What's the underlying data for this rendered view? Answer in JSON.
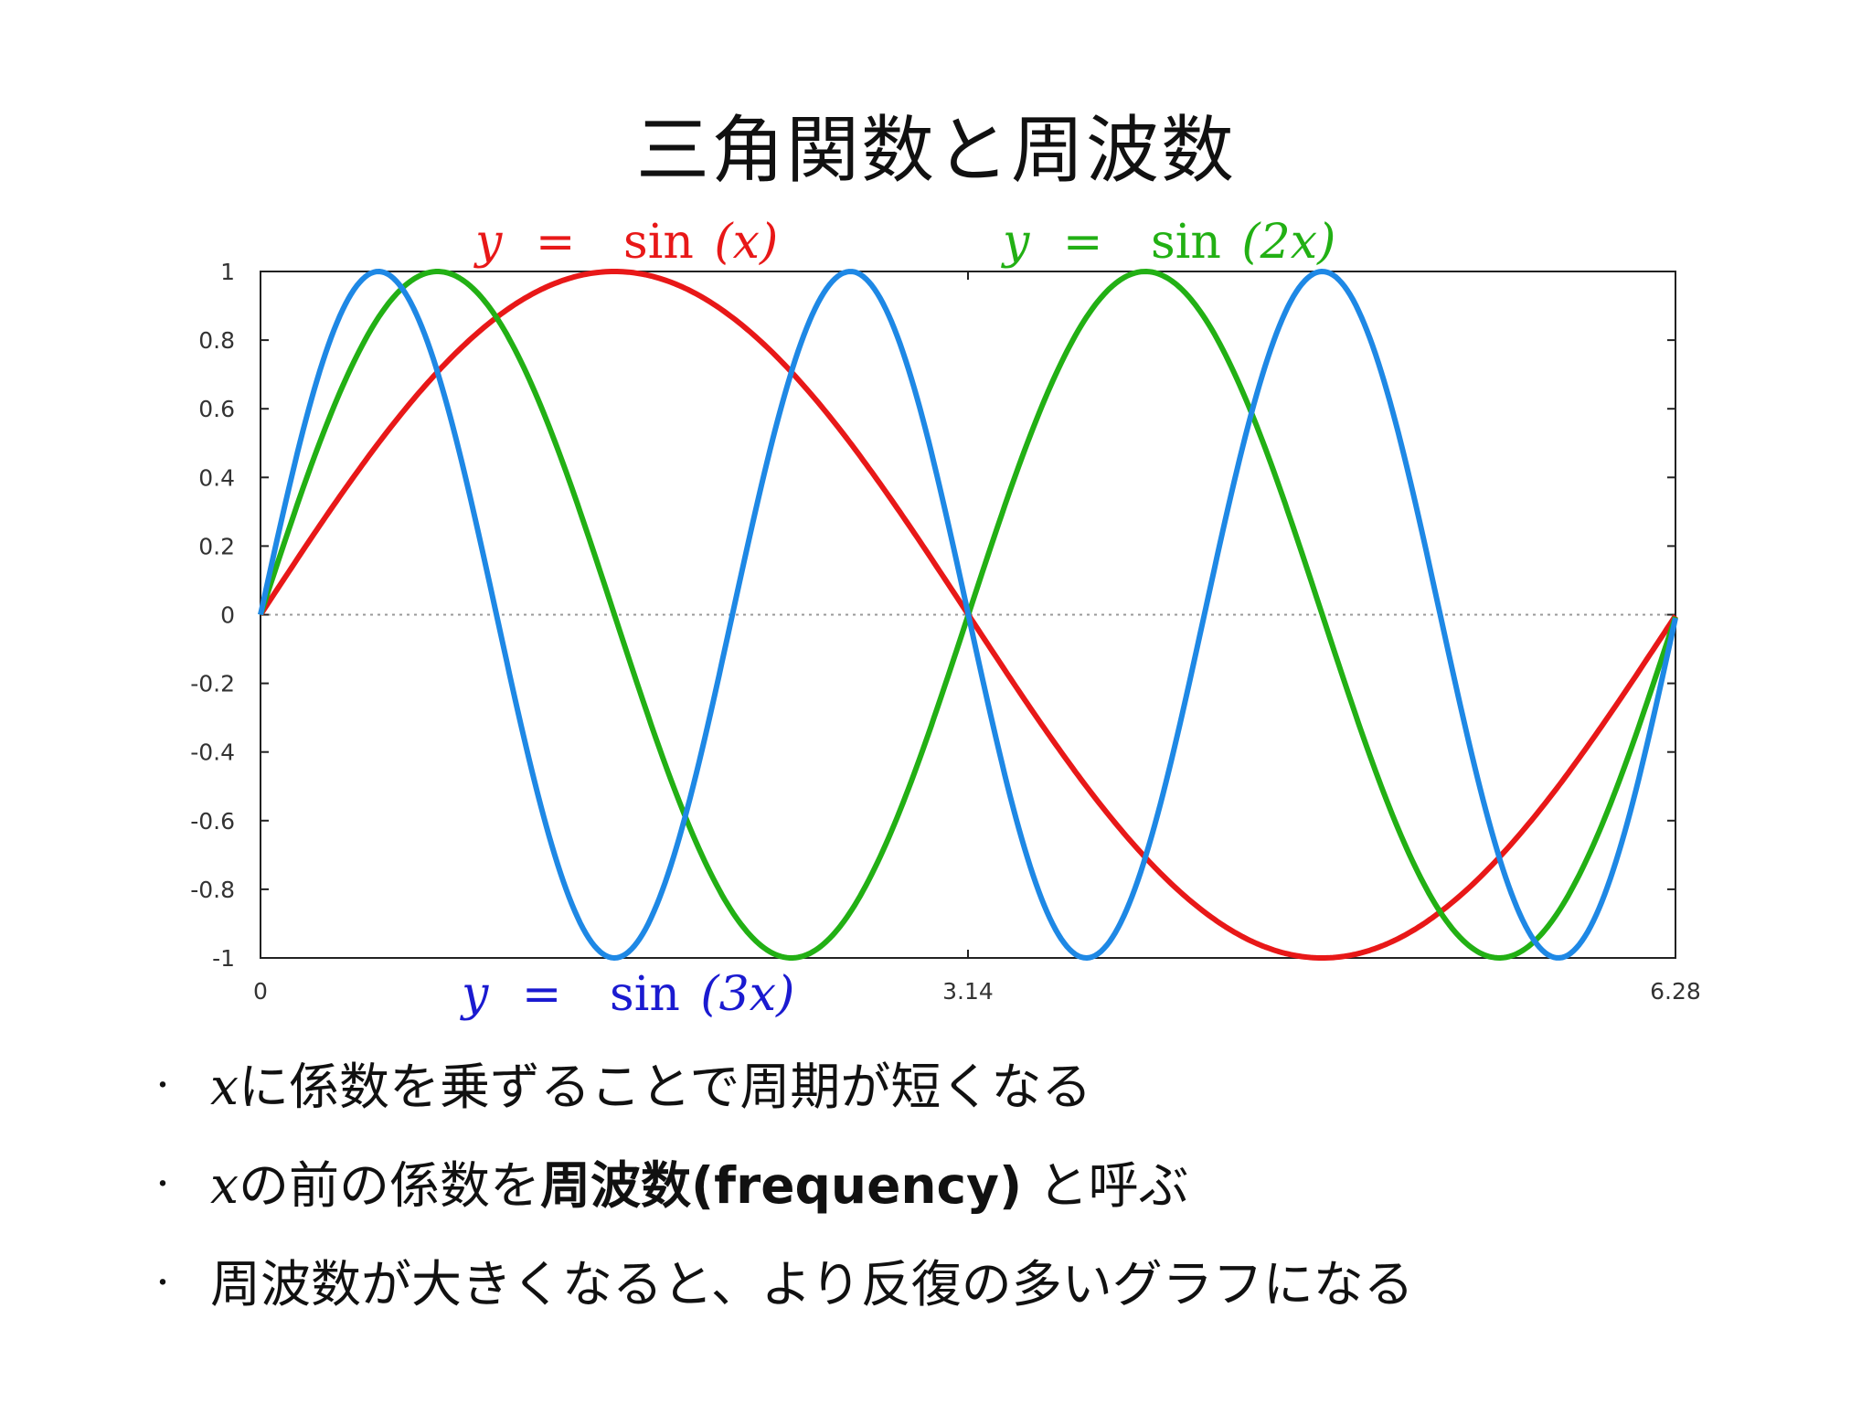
{
  "title": "三角関数と周波数",
  "colors": {
    "sin_x": "#e81818",
    "sin_2x": "#22b014",
    "sin_3x": "#1e88e5",
    "sin_3x_label": "#1a1ad0"
  },
  "chart_data": {
    "type": "line",
    "x_ticks": [
      "0",
      "3.14",
      "6.28"
    ],
    "y_ticks": [
      "1",
      "0.8",
      "0.6",
      "0.4",
      "0.2",
      "0",
      "-0.2",
      "-0.4",
      "-0.6",
      "-0.8",
      "-1"
    ],
    "xlim": [
      0,
      6.28
    ],
    "ylim": [
      -1,
      1
    ],
    "zero_line": "dotted",
    "series": [
      {
        "name": "y = sin(x)",
        "frequency": 1,
        "label": {
          "y": "y",
          "eq": "=",
          "fn": "sin",
          "arg": "(x)"
        }
      },
      {
        "name": "y = sin(2x)",
        "frequency": 2,
        "label": {
          "y": "y",
          "eq": "=",
          "fn": "sin",
          "arg": "(2x)"
        }
      },
      {
        "name": "y = sin(3x)",
        "frequency": 3,
        "label": {
          "y": "y",
          "eq": "=",
          "fn": "sin",
          "arg": "(3x)"
        }
      }
    ]
  },
  "bullets": [
    {
      "dot": "・",
      "var": "x",
      "text": "に係数を乗ずることで周期が短くなる"
    },
    {
      "dot": "・",
      "var": "x",
      "text_a": "の前の係数を",
      "bold": "周波数(frequency)",
      "text_b": " と呼ぶ"
    },
    {
      "dot": "・",
      "text": "周波数が大きくなると、より反復の多いグラフになる"
    }
  ]
}
